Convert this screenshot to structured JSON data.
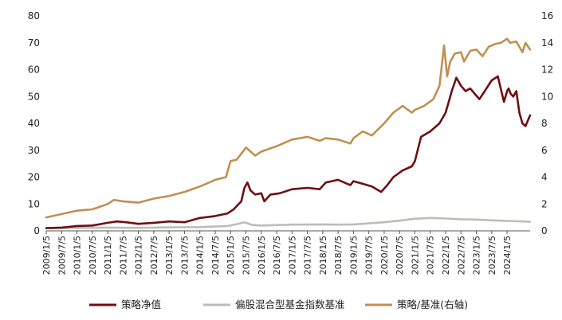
{
  "chart_data": {
    "type": "line",
    "title": "",
    "xlabel": "",
    "ylabel": "",
    "ylim": [
      0,
      80
    ],
    "y2lim": [
      0,
      16
    ],
    "yticks": [
      "0",
      "10",
      "20",
      "30",
      "40",
      "50",
      "60",
      "70",
      "80"
    ],
    "y2ticks": [
      "0",
      "2",
      "4",
      "6",
      "8",
      "10",
      "12",
      "14",
      "16"
    ],
    "xticks": [
      "2009/1/5",
      "2009/7/5",
      "2010/1/5",
      "2010/7/5",
      "2011/1/5",
      "2011/7/5",
      "2012/1/5",
      "2012/7/5",
      "2013/1/5",
      "2013/7/5",
      "2014/1/5",
      "2014/7/5",
      "2015/1/5",
      "2015/7/5",
      "2016/1/5",
      "2016/7/5",
      "2017/1/5",
      "2017/7/5",
      "2018/1/5",
      "2018/7/5",
      "2019/1/5",
      "2019/7/5",
      "2020/1/5",
      "2020/7/5",
      "2021/1/5",
      "2021/7/5",
      "2022/1/5",
      "2022/7/5",
      "2023/1/5",
      "2023/7/5",
      "2024/1/5"
    ],
    "x_range": [
      2009.0,
      2024.75
    ],
    "grid": false,
    "legend_position": "bottom",
    "series": [
      {
        "name": "策略净值",
        "axis": "left",
        "color": "#6e0f12",
        "x": [
          2009.0,
          2009.5,
          2010.0,
          2010.5,
          2011.0,
          2011.3,
          2011.6,
          2012.0,
          2012.5,
          2013.0,
          2013.5,
          2014.0,
          2014.5,
          2014.9,
          2015.1,
          2015.35,
          2015.45,
          2015.55,
          2015.65,
          2015.8,
          2016.0,
          2016.1,
          2016.3,
          2016.6,
          2017.0,
          2017.5,
          2017.9,
          2018.1,
          2018.5,
          2018.9,
          2019.0,
          2019.3,
          2019.6,
          2019.9,
          2020.1,
          2020.3,
          2020.6,
          2020.9,
          2021.0,
          2021.2,
          2021.5,
          2021.8,
          2022.0,
          2022.1,
          2022.2,
          2022.35,
          2022.5,
          2022.65,
          2022.8,
          2022.95,
          2023.1,
          2023.3,
          2023.5,
          2023.7,
          2023.9,
          2024.0,
          2024.05,
          2024.12,
          2024.2,
          2024.3,
          2024.4,
          2024.5,
          2024.6,
          2024.75
        ],
        "values": [
          1.0,
          1.2,
          1.8,
          2.0,
          3.0,
          3.5,
          3.2,
          2.6,
          3.0,
          3.5,
          3.2,
          4.8,
          5.5,
          6.5,
          8.0,
          11.0,
          16.0,
          18.0,
          15.0,
          13.5,
          14.0,
          11.0,
          13.5,
          14.0,
          15.5,
          16.0,
          15.5,
          18.0,
          19.0,
          17.0,
          18.5,
          17.5,
          16.5,
          14.5,
          17.0,
          20.0,
          22.5,
          24.0,
          26.0,
          35.0,
          37.0,
          40.0,
          44.0,
          48.0,
          52.0,
          57.0,
          54.0,
          52.0,
          53.0,
          51.0,
          49.0,
          52.5,
          56.0,
          57.5,
          48.0,
          52.0,
          53.0,
          51.0,
          50.0,
          52.0,
          44.0,
          40.0,
          39.0,
          43.0
        ]
      },
      {
        "name": "偏股混合型基金指数基准",
        "axis": "left",
        "color": "#bdbdb5",
        "x": [
          2009.0,
          2010.0,
          2011.0,
          2012.0,
          2013.0,
          2014.0,
          2014.9,
          2015.2,
          2015.45,
          2015.7,
          2016.0,
          2017.0,
          2018.0,
          2018.5,
          2019.0,
          2019.5,
          2020.0,
          2020.5,
          2021.0,
          2021.5,
          2022.0,
          2022.5,
          2023.0,
          2023.5,
          2024.0,
          2024.5,
          2024.75
        ],
        "values": [
          1.0,
          1.1,
          1.2,
          1.1,
          1.3,
          1.4,
          1.8,
          2.5,
          3.2,
          2.2,
          2.0,
          2.3,
          2.4,
          2.3,
          2.4,
          2.8,
          3.2,
          3.8,
          4.5,
          4.8,
          4.6,
          4.3,
          4.2,
          3.9,
          3.7,
          3.5,
          3.4
        ]
      },
      {
        "name": "策略/基准(右轴)",
        "axis": "right",
        "color": "#c09051",
        "x": [
          2009.0,
          2009.5,
          2010.0,
          2010.5,
          2011.0,
          2011.2,
          2011.5,
          2012.0,
          2012.5,
          2013.0,
          2013.5,
          2014.0,
          2014.5,
          2014.85,
          2015.0,
          2015.2,
          2015.5,
          2015.65,
          2015.8,
          2016.0,
          2016.5,
          2017.0,
          2017.5,
          2017.9,
          2018.1,
          2018.5,
          2018.9,
          2019.0,
          2019.3,
          2019.6,
          2020.0,
          2020.3,
          2020.6,
          2020.9,
          2021.0,
          2021.3,
          2021.6,
          2021.8,
          2021.95,
          2022.05,
          2022.15,
          2022.3,
          2022.5,
          2022.6,
          2022.8,
          2023.0,
          2023.2,
          2023.4,
          2023.6,
          2023.8,
          2024.0,
          2024.1,
          2024.3,
          2024.5,
          2024.6,
          2024.75
        ],
        "values": [
          1.0,
          1.25,
          1.5,
          1.6,
          2.0,
          2.3,
          2.2,
          2.1,
          2.4,
          2.6,
          2.9,
          3.3,
          3.8,
          4.0,
          5.2,
          5.3,
          6.2,
          5.9,
          5.6,
          5.9,
          6.3,
          6.8,
          7.0,
          6.7,
          6.9,
          6.8,
          6.5,
          6.9,
          7.4,
          7.1,
          8.0,
          8.8,
          9.3,
          8.8,
          9.0,
          9.3,
          9.8,
          10.8,
          13.8,
          11.5,
          12.6,
          13.2,
          13.3,
          12.6,
          13.4,
          13.5,
          13.0,
          13.7,
          13.9,
          14.0,
          14.3,
          14.0,
          14.1,
          13.3,
          14.0,
          13.5
        ]
      }
    ]
  }
}
